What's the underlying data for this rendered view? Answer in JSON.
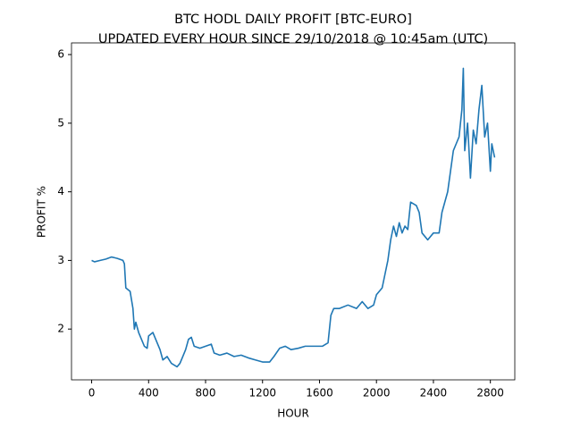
{
  "chart_data": {
    "type": "line",
    "title": "BTC HODL DAILY PROFIT [BTC-EURO]",
    "subtitle": "UPDATED EVERY HOUR SINCE 29/10/2018 @ 10:45am (UTC)",
    "x_label": "HOUR",
    "y_label": "PROFIT %",
    "x": [
      0,
      20,
      60,
      100,
      140,
      180,
      220,
      230,
      240,
      270,
      290,
      300,
      310,
      330,
      350,
      370,
      390,
      400,
      430,
      460,
      480,
      500,
      530,
      560,
      600,
      620,
      640,
      660,
      680,
      700,
      720,
      760,
      800,
      840,
      860,
      900,
      950,
      1000,
      1050,
      1100,
      1150,
      1200,
      1250,
      1280,
      1320,
      1360,
      1400,
      1450,
      1500,
      1560,
      1620,
      1660,
      1680,
      1700,
      1740,
      1800,
      1860,
      1900,
      1940,
      1980,
      2000,
      2040,
      2060,
      2080,
      2100,
      2120,
      2140,
      2160,
      2180,
      2200,
      2220,
      2240,
      2280,
      2300,
      2320,
      2360,
      2400,
      2440,
      2460,
      2500,
      2520,
      2540,
      2560,
      2580,
      2600,
      2610,
      2620,
      2640,
      2660,
      2680,
      2700,
      2720,
      2740,
      2760,
      2780,
      2800,
      2810,
      2830
    ],
    "values": [
      3.0,
      2.98,
      3.0,
      3.02,
      3.05,
      3.03,
      3.0,
      2.95,
      2.6,
      2.55,
      2.3,
      2.0,
      2.1,
      1.95,
      1.85,
      1.75,
      1.72,
      1.9,
      1.95,
      1.8,
      1.7,
      1.55,
      1.6,
      1.5,
      1.45,
      1.5,
      1.6,
      1.7,
      1.85,
      1.88,
      1.75,
      1.72,
      1.75,
      1.78,
      1.65,
      1.62,
      1.65,
      1.6,
      1.62,
      1.58,
      1.55,
      1.52,
      1.52,
      1.6,
      1.72,
      1.75,
      1.7,
      1.72,
      1.75,
      1.75,
      1.75,
      1.8,
      2.2,
      2.3,
      2.3,
      2.35,
      2.3,
      2.4,
      2.3,
      2.35,
      2.5,
      2.6,
      2.8,
      3.0,
      3.3,
      3.5,
      3.35,
      3.55,
      3.4,
      3.5,
      3.45,
      3.85,
      3.8,
      3.7,
      3.4,
      3.3,
      3.4,
      3.4,
      3.7,
      4.0,
      4.3,
      4.6,
      4.7,
      4.8,
      5.2,
      5.8,
      4.6,
      5.0,
      4.2,
      4.9,
      4.7,
      5.2,
      5.55,
      4.8,
      5.0,
      4.3,
      4.7,
      4.5
    ],
    "color": "#1f77b4",
    "xlim": [
      -141.5,
      2971.5
    ],
    "ylim": [
      1.26,
      6.17
    ],
    "xticks": [
      0,
      400,
      800,
      1200,
      1600,
      2000,
      2400,
      2800
    ],
    "yticks": [
      2,
      3,
      4,
      5,
      6
    ]
  }
}
